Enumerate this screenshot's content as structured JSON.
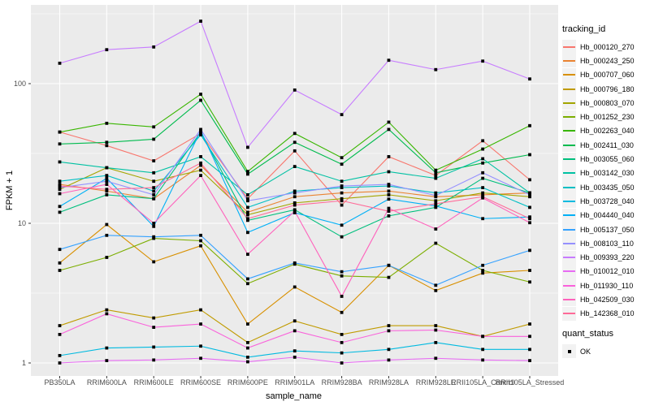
{
  "figure": {
    "xlabel": "sample_name",
    "ylabel": "FPKM + 1",
    "legend_title": "tracking_id",
    "legend2_title": "quant_status",
    "legend2_items": [
      {
        "label": "OK",
        "marker": "black-filled-square"
      }
    ],
    "colors": {
      "panel_bg": "#EBEBEB",
      "grid": "#FFFFFF",
      "tick_label": "#4D4D4D",
      "axis_title": "#000000",
      "marker": "#000000",
      "legend_key_bg": "#F2F2F2"
    }
  },
  "chart_data": {
    "type": "line",
    "title": "",
    "xlabel": "sample_name",
    "ylabel": "FPKM + 1",
    "y_scale": "log10",
    "ylim": [
      0.81,
      366
    ],
    "yticks": [
      1,
      10,
      100
    ],
    "ytick_labels": [
      "1",
      "10",
      "100"
    ],
    "y_minor_ticks": [
      3.162,
      31.62,
      316.2
    ],
    "grid": true,
    "legend_position": "right",
    "point_marker": "small black square (quant_status = OK)",
    "categories": [
      "PB350LA",
      "RRIM600LA",
      "RRIM600LE",
      "RRIM600SE",
      "RRIM600PE",
      "RRIM901LA",
      "RRIM928BA",
      "RRIM928LA",
      "RRIM928LE",
      "RRII105LA_Control",
      "RRII105LA_Stressed"
    ],
    "series": [
      {
        "name": "Hb_000120_270",
        "color": "#F8766D",
        "values": [
          45,
          36,
          28,
          44,
          15,
          33,
          13.5,
          30,
          22,
          39,
          20.5
        ]
      },
      {
        "name": "Hb_000243_250",
        "color": "#EA8331",
        "values": [
          19,
          17,
          15,
          26,
          12,
          15.5,
          16.5,
          17,
          15.5,
          16,
          16.5
        ]
      },
      {
        "name": "Hb_000707_060",
        "color": "#D89000",
        "values": [
          5.2,
          9.8,
          5.3,
          6.9,
          1.9,
          3.5,
          2.3,
          5.0,
          3.3,
          4.4,
          4.6
        ]
      },
      {
        "name": "Hb_000796_180",
        "color": "#C09B00",
        "values": [
          1.85,
          2.4,
          2.1,
          2.4,
          1.4,
          2.0,
          1.6,
          1.85,
          1.85,
          1.55,
          1.9
        ]
      },
      {
        "name": "Hb_000803_070",
        "color": "#A3A500",
        "values": [
          17.5,
          25,
          20,
          24,
          11.5,
          14,
          15,
          16,
          14.5,
          16.5,
          15.5
        ]
      },
      {
        "name": "Hb_001252_230",
        "color": "#7CAE00",
        "values": [
          4.6,
          5.7,
          7.8,
          7.5,
          3.7,
          5.1,
          4.2,
          4.1,
          7.2,
          4.6,
          3.8
        ]
      },
      {
        "name": "Hb_002263_040",
        "color": "#39B600",
        "values": [
          45,
          52,
          49,
          84,
          23.5,
          44,
          29.5,
          53,
          24,
          34,
          50
        ]
      },
      {
        "name": "Hb_002411_030",
        "color": "#00BB4E",
        "values": [
          37,
          38,
          40,
          76,
          22.5,
          38,
          26.5,
          47,
          23,
          27,
          31
        ]
      },
      {
        "name": "Hb_003055_060",
        "color": "#00BF7D",
        "values": [
          12,
          16,
          15,
          45,
          10.5,
          12.5,
          8,
          11.3,
          13,
          21,
          16.5
        ]
      },
      {
        "name": "Hb_003142_030",
        "color": "#00C1A3",
        "values": [
          27.5,
          25,
          23,
          30,
          16,
          25.5,
          20,
          23.4,
          21,
          29,
          16.5
        ]
      },
      {
        "name": "Hb_003435_050",
        "color": "#00BFC4",
        "values": [
          20,
          22,
          17,
          43,
          13,
          17,
          18,
          18.5,
          16.5,
          18,
          13
        ]
      },
      {
        "name": "Hb_003728_040",
        "color": "#00BAE0",
        "values": [
          1.13,
          1.28,
          1.3,
          1.32,
          1.1,
          1.22,
          1.18,
          1.25,
          1.4,
          1.25,
          1.25
        ]
      },
      {
        "name": "Hb_004440_040",
        "color": "#00B0F6",
        "values": [
          13.2,
          21,
          9.5,
          46,
          8.6,
          11.9,
          9.7,
          14.9,
          13.3,
          10.8,
          11.1
        ]
      },
      {
        "name": "Hb_005137_050",
        "color": "#35A2FF",
        "values": [
          6.5,
          8.2,
          8.0,
          8.2,
          4.0,
          5.2,
          4.5,
          5.0,
          3.6,
          5.0,
          6.4
        ]
      },
      {
        "name": "Hb_008103_110",
        "color": "#9590FF",
        "values": [
          18,
          20,
          16,
          47,
          14.5,
          16.5,
          18.5,
          19,
          15.8,
          23,
          16
        ]
      },
      {
        "name": "Hb_009393_220",
        "color": "#C77CFF",
        "values": [
          140,
          175,
          183,
          280,
          35,
          90,
          60,
          147,
          126,
          145,
          108
        ]
      },
      {
        "name": "Hb_010012_010",
        "color": "#E76BF3",
        "values": [
          1.0,
          1.04,
          1.05,
          1.08,
          1.02,
          1.1,
          1.0,
          1.05,
          1.08,
          1.05,
          1.04
        ]
      },
      {
        "name": "Hb_011930_110",
        "color": "#FA62DB",
        "values": [
          1.6,
          2.25,
          1.8,
          1.9,
          1.28,
          1.7,
          1.4,
          1.7,
          1.72,
          1.55,
          1.55
        ]
      },
      {
        "name": "Hb_042509_030",
        "color": "#FF62BC",
        "values": [
          16.3,
          19,
          10,
          22,
          6.0,
          12.2,
          3.0,
          12.8,
          9.1,
          15.2,
          10.1
        ]
      },
      {
        "name": "Hb_142368_010",
        "color": "#FF6A98",
        "values": [
          18.5,
          17.5,
          18,
          27,
          10.8,
          13.5,
          14.5,
          12.2,
          13.8,
          15.5,
          10.8
        ]
      }
    ]
  }
}
